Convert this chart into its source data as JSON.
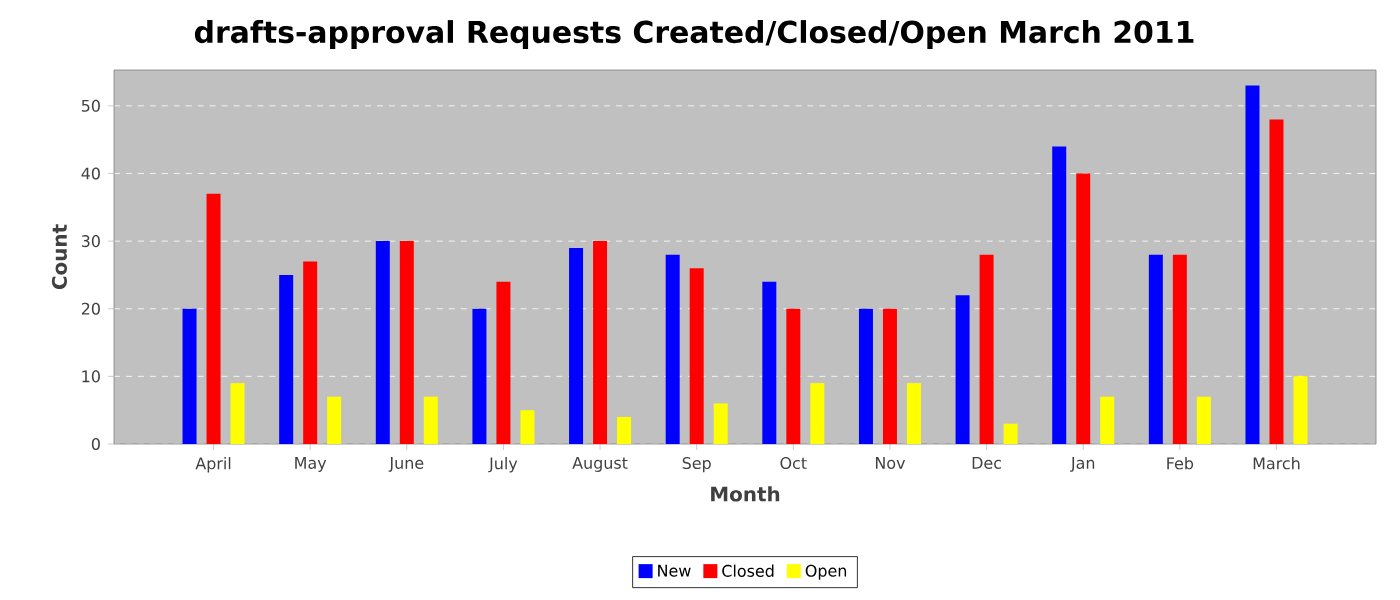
{
  "chart_data": {
    "type": "bar",
    "title": "drafts-approval Requests Created/Closed/Open March 2011",
    "xlabel": "Month",
    "ylabel": "Count",
    "categories": [
      "April",
      "May",
      "June",
      "July",
      "August",
      "Sep",
      "Oct",
      "Nov",
      "Dec",
      "Jan",
      "Feb",
      "March"
    ],
    "series": [
      {
        "name": "New",
        "color": "#0000ff",
        "values": [
          20,
          25,
          30,
          20,
          29,
          28,
          24,
          20,
          22,
          44,
          28,
          53
        ]
      },
      {
        "name": "Closed",
        "color": "#ff0000",
        "values": [
          37,
          27,
          30,
          24,
          30,
          26,
          20,
          20,
          28,
          40,
          28,
          48
        ]
      },
      {
        "name": "Open",
        "color": "#ffff00",
        "values": [
          9,
          7,
          7,
          5,
          4,
          6,
          9,
          9,
          3,
          7,
          7,
          10
        ]
      }
    ],
    "ylim": [
      0,
      55.3
    ],
    "yticks": [
      0,
      10,
      20,
      30,
      40,
      50
    ],
    "grid": "y",
    "legend": "bottom"
  }
}
